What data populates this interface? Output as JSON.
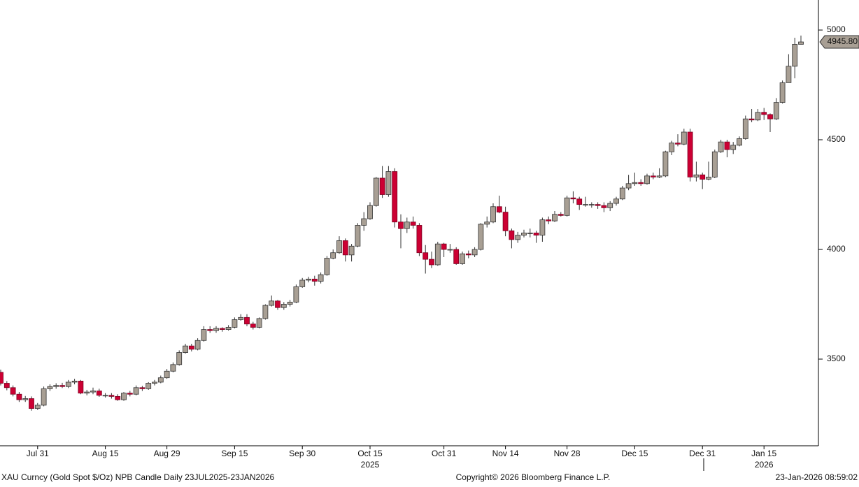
{
  "chart_data": {
    "type": "candlestick",
    "caption": "XAU Curncy (Gold Spot  $/Oz) NPB Candle Daily 23JUL2025-23JAN2026",
    "copyright": "Copyright© 2026 Bloomberg Finance L.P.",
    "timestamp": "23-Jan-2026 08:59:02",
    "up_color": "#a89f94",
    "down_color": "#cc0033",
    "ylim": [
      3105,
      5137
    ],
    "yticks": [
      3500,
      4000,
      4500,
      5000
    ],
    "last_close_label": "4945.80",
    "categories": [
      null,
      null,
      null,
      null,
      null,
      null,
      "Jul 31",
      null,
      null,
      null,
      null,
      null,
      null,
      null,
      null,
      null,
      null,
      "Aug 15",
      null,
      null,
      null,
      null,
      null,
      null,
      null,
      null,
      null,
      "Aug 29",
      null,
      null,
      null,
      null,
      null,
      null,
      null,
      null,
      null,
      null,
      "Sep 15",
      null,
      null,
      null,
      null,
      null,
      null,
      null,
      null,
      null,
      null,
      "Sep 30",
      null,
      null,
      null,
      null,
      null,
      null,
      null,
      null,
      null,
      null,
      "Oct 15",
      null,
      null,
      null,
      null,
      null,
      null,
      null,
      null,
      null,
      null,
      null,
      "Oct 31",
      null,
      null,
      null,
      null,
      null,
      null,
      null,
      null,
      null,
      "Nov 14",
      null,
      null,
      null,
      null,
      null,
      null,
      null,
      null,
      null,
      "Nov 28",
      null,
      null,
      null,
      null,
      null,
      null,
      null,
      null,
      null,
      null,
      "Dec 15",
      null,
      null,
      null,
      null,
      null,
      null,
      null,
      null,
      null,
      null,
      "Dec 31",
      null,
      null,
      null,
      null,
      null,
      null,
      null,
      null,
      null,
      "Jan 15",
      null,
      null,
      null,
      null,
      null,
      null
    ],
    "categories_row2": [
      null,
      null,
      null,
      null,
      null,
      null,
      null,
      null,
      null,
      null,
      null,
      null,
      null,
      null,
      null,
      null,
      null,
      null,
      null,
      null,
      null,
      null,
      null,
      null,
      null,
      null,
      null,
      null,
      null,
      null,
      null,
      null,
      null,
      null,
      null,
      null,
      null,
      null,
      null,
      null,
      null,
      null,
      null,
      null,
      null,
      null,
      null,
      null,
      null,
      null,
      null,
      null,
      null,
      null,
      null,
      null,
      null,
      null,
      null,
      null,
      "2025",
      null,
      null,
      null,
      null,
      null,
      null,
      null,
      null,
      null,
      null,
      null,
      null,
      null,
      null,
      null,
      null,
      null,
      null,
      null,
      null,
      null,
      null,
      null,
      null,
      null,
      null,
      null,
      null,
      null,
      null,
      null,
      null,
      null,
      null,
      null,
      null,
      null,
      null,
      null,
      null,
      null,
      null,
      null,
      null,
      null,
      null,
      null,
      null,
      null,
      null,
      null,
      null,
      null,
      null,
      null,
      null,
      null,
      null,
      null,
      null,
      null,
      null,
      null,
      "2026",
      null,
      null,
      null,
      null,
      null,
      null
    ],
    "open": [
      3440,
      3390,
      3370,
      3340,
      3315,
      3320,
      3275,
      3290,
      3365,
      3375,
      3380,
      3375,
      3395,
      3400,
      3345,
      3350,
      3355,
      3335,
      3335,
      3330,
      3315,
      3345,
      3340,
      3370,
      3365,
      3390,
      3395,
      3415,
      3445,
      3475,
      3530,
      3560,
      3545,
      3585,
      3635,
      3630,
      3640,
      3635,
      3645,
      3680,
      3690,
      3660,
      3645,
      3685,
      3745,
      3765,
      3735,
      3750,
      3760,
      3830,
      3860,
      3865,
      3855,
      3885,
      3960,
      3985,
      4040,
      3975,
      4015,
      4110,
      4140,
      4200,
      4325,
      4250,
      4355,
      4125,
      4095,
      4125,
      4110,
      3985,
      3955,
      3930,
      4025,
      4000,
      4000,
      3935,
      3980,
      3975,
      4000,
      4115,
      4125,
      4195,
      4170,
      4085,
      4045,
      4065,
      4075,
      4075,
      4065,
      4135,
      4130,
      4160,
      4155,
      4235,
      4230,
      4205,
      4205,
      4205,
      4200,
      4190,
      4210,
      4230,
      4280,
      4300,
      4305,
      4300,
      4335,
      4330,
      4335,
      4445,
      4485,
      4480,
      4535,
      4330,
      4340,
      4320,
      4330,
      4445,
      4490,
      4455,
      4475,
      4505,
      4595,
      4590,
      4625,
      4615,
      4595,
      4670,
      4760,
      4835,
      4935
    ],
    "high": [
      3452,
      3400,
      3380,
      3350,
      3332,
      3330,
      3300,
      3375,
      3385,
      3390,
      3392,
      3405,
      3410,
      3405,
      3360,
      3370,
      3365,
      3345,
      3345,
      3340,
      3350,
      3355,
      3380,
      3378,
      3395,
      3405,
      3425,
      3455,
      3485,
      3540,
      3570,
      3570,
      3595,
      3650,
      3650,
      3650,
      3645,
      3655,
      3690,
      3705,
      3705,
      3670,
      3690,
      3750,
      3790,
      3770,
      3760,
      3770,
      3840,
      3870,
      3875,
      3880,
      3895,
      3970,
      4000,
      4060,
      4050,
      4025,
      4120,
      4170,
      4215,
      4330,
      4380,
      4380,
      4370,
      4160,
      4145,
      4150,
      4120,
      4020,
      3990,
      4035,
      4030,
      4025,
      4010,
      3990,
      3995,
      4010,
      4120,
      4150,
      4210,
      4245,
      4195,
      4095,
      4080,
      4090,
      4095,
      4085,
      4145,
      4150,
      4175,
      4170,
      4245,
      4265,
      4240,
      4240,
      4215,
      4215,
      4215,
      4220,
      4240,
      4290,
      4340,
      4350,
      4320,
      4345,
      4350,
      4370,
      4450,
      4495,
      4525,
      4550,
      4550,
      4400,
      4350,
      4400,
      4455,
      4500,
      4500,
      4490,
      4515,
      4610,
      4640,
      4640,
      4645,
      4620,
      4690,
      4770,
      4890,
      4965,
      4975
    ],
    "low": [
      3380,
      3358,
      3330,
      3305,
      3305,
      3265,
      3268,
      3285,
      3355,
      3365,
      3368,
      3368,
      3385,
      3340,
      3335,
      3340,
      3328,
      3325,
      3320,
      3310,
      3310,
      3330,
      3335,
      3355,
      3360,
      3380,
      3390,
      3410,
      3440,
      3470,
      3525,
      3535,
      3540,
      3580,
      3620,
      3620,
      3625,
      3630,
      3640,
      3675,
      3650,
      3635,
      3640,
      3680,
      3740,
      3725,
      3725,
      3740,
      3755,
      3825,
      3850,
      3835,
      3845,
      3880,
      3955,
      3980,
      3945,
      3945,
      4010,
      4085,
      4135,
      4195,
      4235,
      4240,
      4100,
      4005,
      4075,
      4095,
      3970,
      3890,
      3915,
      3925,
      3965,
      3985,
      3930,
      3930,
      3960,
      3965,
      3995,
      4100,
      4120,
      4165,
      4060,
      4005,
      4030,
      4055,
      4055,
      4030,
      4035,
      4115,
      4125,
      4150,
      4150,
      4210,
      4180,
      4195,
      4190,
      4185,
      4170,
      4175,
      4200,
      4225,
      4270,
      4290,
      4290,
      4295,
      4320,
      4325,
      4330,
      4430,
      4470,
      4475,
      4310,
      4310,
      4275,
      4315,
      4325,
      4440,
      4420,
      4435,
      4470,
      4500,
      4580,
      4585,
      4590,
      4535,
      4590,
      4665,
      4760,
      4780,
      4935
    ],
    "close": [
      3390,
      3370,
      3340,
      3315,
      3320,
      3275,
      3290,
      3365,
      3375,
      3380,
      3375,
      3395,
      3400,
      3345,
      3350,
      3355,
      3335,
      3335,
      3330,
      3315,
      3345,
      3340,
      3370,
      3365,
      3390,
      3395,
      3415,
      3445,
      3475,
      3530,
      3560,
      3545,
      3585,
      3635,
      3630,
      3640,
      3635,
      3645,
      3680,
      3690,
      3660,
      3645,
      3685,
      3745,
      3765,
      3735,
      3750,
      3760,
      3830,
      3860,
      3865,
      3855,
      3885,
      3960,
      3985,
      4040,
      3975,
      4015,
      4110,
      4140,
      4200,
      4325,
      4250,
      4355,
      4125,
      4095,
      4125,
      4110,
      3985,
      3955,
      3930,
      4025,
      4000,
      4000,
      3935,
      3980,
      3975,
      4000,
      4115,
      4125,
      4195,
      4170,
      4085,
      4045,
      4065,
      4075,
      4075,
      4065,
      4135,
      4130,
      4160,
      4155,
      4235,
      4230,
      4205,
      4205,
      4205,
      4200,
      4190,
      4210,
      4230,
      4280,
      4300,
      4305,
      4300,
      4335,
      4330,
      4335,
      4445,
      4485,
      4480,
      4535,
      4330,
      4340,
      4320,
      4330,
      4445,
      4490,
      4455,
      4475,
      4505,
      4595,
      4590,
      4625,
      4615,
      4595,
      4670,
      4760,
      4835,
      4935,
      4945.8
    ]
  }
}
